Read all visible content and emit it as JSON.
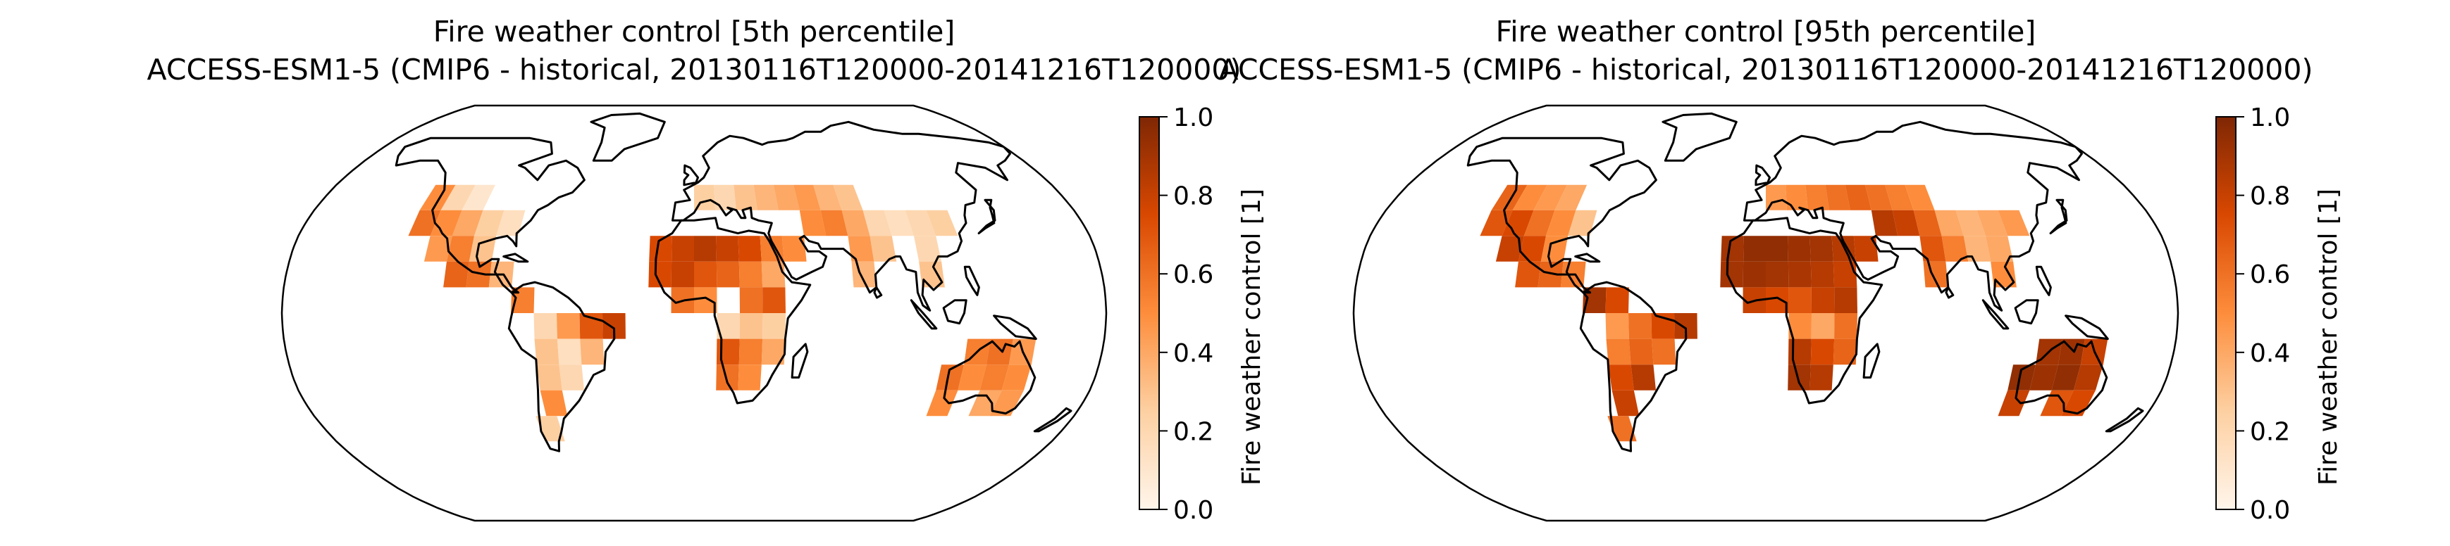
{
  "figure": {
    "panels": [
      {
        "title_line1": "Fire weather control [5th percentile]",
        "title_line2": "ACCESS-ESM1-5 (CMIP6 - historical, 20130116T120000-20141216T120000)",
        "colorbar_label": "Fire weather control [1]"
      },
      {
        "title_line1": "Fire weather control [95th percentile]",
        "title_line2": "ACCESS-ESM1-5 (CMIP6 - historical, 20130116T120000-20141216T120000)",
        "colorbar_label": "Fire weather control [1]"
      }
    ]
  },
  "chart_data": [
    {
      "type": "heatmap",
      "projection": "Robinson",
      "colormap": "Oranges",
      "colormap_stops": [
        "#fff5eb",
        "#fdd0a2",
        "#fd8d3c",
        "#d94801",
        "#7f2704"
      ],
      "vmin": 0.0,
      "vmax": 1.0,
      "colorbar_ticks": [
        "0.0",
        "0.2",
        "0.4",
        "0.6",
        "0.8",
        "1.0"
      ],
      "colorbar_tick_values": [
        0.0,
        0.2,
        0.4,
        0.6,
        0.8,
        1.0
      ],
      "grid_resolution_deg": 10,
      "cells": [
        {
          "lon": -125,
          "lat": 45,
          "v": 0.5
        },
        {
          "lon": -115,
          "lat": 45,
          "v": 0.2
        },
        {
          "lon": -105,
          "lat": 45,
          "v": 0.1
        },
        {
          "lon": -125,
          "lat": 35,
          "v": 0.6
        },
        {
          "lon": -115,
          "lat": 35,
          "v": 0.5
        },
        {
          "lon": -105,
          "lat": 35,
          "v": 0.4
        },
        {
          "lon": -95,
          "lat": 35,
          "v": 0.25
        },
        {
          "lon": -85,
          "lat": 35,
          "v": 0.15
        },
        {
          "lon": -115,
          "lat": 25,
          "v": 0.45
        },
        {
          "lon": -105,
          "lat": 25,
          "v": 0.55
        },
        {
          "lon": -95,
          "lat": 25,
          "v": 0.3
        },
        {
          "lon": -105,
          "lat": 15,
          "v": 0.65
        },
        {
          "lon": -95,
          "lat": 15,
          "v": 0.6
        },
        {
          "lon": -85,
          "lat": 15,
          "v": 0.35
        },
        {
          "lon": -75,
          "lat": 5,
          "v": 0.55
        },
        {
          "lon": -65,
          "lat": -5,
          "v": 0.2
        },
        {
          "lon": -55,
          "lat": -5,
          "v": 0.45
        },
        {
          "lon": -45,
          "lat": -5,
          "v": 0.7
        },
        {
          "lon": -35,
          "lat": -5,
          "v": 0.8
        },
        {
          "lon": -65,
          "lat": -15,
          "v": 0.3
        },
        {
          "lon": -55,
          "lat": -15,
          "v": 0.15
        },
        {
          "lon": -45,
          "lat": -15,
          "v": 0.35
        },
        {
          "lon": -65,
          "lat": -25,
          "v": 0.3
        },
        {
          "lon": -55,
          "lat": -25,
          "v": 0.2
        },
        {
          "lon": -65,
          "lat": -35,
          "v": 0.5
        },
        {
          "lon": -70,
          "lat": -45,
          "v": 0.25
        },
        {
          "lon": -15,
          "lat": 25,
          "v": 0.75
        },
        {
          "lon": -5,
          "lat": 25,
          "v": 0.8
        },
        {
          "lon": 5,
          "lat": 25,
          "v": 0.85
        },
        {
          "lon": 15,
          "lat": 25,
          "v": 0.8
        },
        {
          "lon": 25,
          "lat": 25,
          "v": 0.75
        },
        {
          "lon": 35,
          "lat": 25,
          "v": 0.55
        },
        {
          "lon": 45,
          "lat": 25,
          "v": 0.5
        },
        {
          "lon": -15,
          "lat": 15,
          "v": 0.75
        },
        {
          "lon": -5,
          "lat": 15,
          "v": 0.8
        },
        {
          "lon": 5,
          "lat": 15,
          "v": 0.7
        },
        {
          "lon": 15,
          "lat": 15,
          "v": 0.65
        },
        {
          "lon": 25,
          "lat": 15,
          "v": 0.55
        },
        {
          "lon": 35,
          "lat": 15,
          "v": 0.4
        },
        {
          "lon": -5,
          "lat": 5,
          "v": 0.6
        },
        {
          "lon": 5,
          "lat": 5,
          "v": 0.5
        },
        {
          "lon": 25,
          "lat": 5,
          "v": 0.6
        },
        {
          "lon": 35,
          "lat": 5,
          "v": 0.7
        },
        {
          "lon": 15,
          "lat": -5,
          "v": 0.2
        },
        {
          "lon": 25,
          "lat": -5,
          "v": 0.3
        },
        {
          "lon": 35,
          "lat": -5,
          "v": 0.25
        },
        {
          "lon": 15,
          "lat": -15,
          "v": 0.7
        },
        {
          "lon": 25,
          "lat": -15,
          "v": 0.55
        },
        {
          "lon": 35,
          "lat": -15,
          "v": 0.4
        },
        {
          "lon": 15,
          "lat": -25,
          "v": 0.6
        },
        {
          "lon": 25,
          "lat": -25,
          "v": 0.5
        },
        {
          "lon": 5,
          "lat": 45,
          "v": 0.25
        },
        {
          "lon": 15,
          "lat": 45,
          "v": 0.2
        },
        {
          "lon": 25,
          "lat": 45,
          "v": 0.3
        },
        {
          "lon": 35,
          "lat": 45,
          "v": 0.35
        },
        {
          "lon": 45,
          "lat": 45,
          "v": 0.4
        },
        {
          "lon": 55,
          "lat": 45,
          "v": 0.45
        },
        {
          "lon": 65,
          "lat": 45,
          "v": 0.35
        },
        {
          "lon": 75,
          "lat": 45,
          "v": 0.3
        },
        {
          "lon": 55,
          "lat": 35,
          "v": 0.5
        },
        {
          "lon": 65,
          "lat": 35,
          "v": 0.55
        },
        {
          "lon": 75,
          "lat": 35,
          "v": 0.4
        },
        {
          "lon": 85,
          "lat": 35,
          "v": 0.2
        },
        {
          "lon": 95,
          "lat": 35,
          "v": 0.15
        },
        {
          "lon": 105,
          "lat": 35,
          "v": 0.2
        },
        {
          "lon": 115,
          "lat": 35,
          "v": 0.25
        },
        {
          "lon": 75,
          "lat": 25,
          "v": 0.45
        },
        {
          "lon": 85,
          "lat": 25,
          "v": 0.3
        },
        {
          "lon": 105,
          "lat": 25,
          "v": 0.2
        },
        {
          "lon": 75,
          "lat": 15,
          "v": 0.35
        },
        {
          "lon": 105,
          "lat": 15,
          "v": 0.3
        },
        {
          "lon": 115,
          "lat": -25,
          "v": 0.6
        },
        {
          "lon": 125,
          "lat": -25,
          "v": 0.5
        },
        {
          "lon": 135,
          "lat": -25,
          "v": 0.55
        },
        {
          "lon": 145,
          "lat": -25,
          "v": 0.5
        },
        {
          "lon": 125,
          "lat": -15,
          "v": 0.55
        },
        {
          "lon": 135,
          "lat": -15,
          "v": 0.6
        },
        {
          "lon": 145,
          "lat": -15,
          "v": 0.45
        },
        {
          "lon": 115,
          "lat": -35,
          "v": 0.5
        },
        {
          "lon": 135,
          "lat": -35,
          "v": 0.4
        },
        {
          "lon": 145,
          "lat": -35,
          "v": 0.45
        }
      ]
    },
    {
      "type": "heatmap",
      "projection": "Robinson",
      "colormap": "Oranges",
      "colormap_stops": [
        "#fff5eb",
        "#fdd0a2",
        "#fd8d3c",
        "#d94801",
        "#7f2704"
      ],
      "vmin": 0.0,
      "vmax": 1.0,
      "colorbar_ticks": [
        "0.0",
        "0.2",
        "0.4",
        "0.6",
        "0.8",
        "1.0"
      ],
      "colorbar_tick_values": [
        0.0,
        0.2,
        0.4,
        0.6,
        0.8,
        1.0
      ],
      "grid_resolution_deg": 10,
      "cells": [
        {
          "lon": -125,
          "lat": 45,
          "v": 0.65
        },
        {
          "lon": -115,
          "lat": 45,
          "v": 0.5
        },
        {
          "lon": -105,
          "lat": 45,
          "v": 0.45
        },
        {
          "lon": -95,
          "lat": 45,
          "v": 0.4
        },
        {
          "lon": -125,
          "lat": 35,
          "v": 0.7
        },
        {
          "lon": -115,
          "lat": 35,
          "v": 0.75
        },
        {
          "lon": -105,
          "lat": 35,
          "v": 0.6
        },
        {
          "lon": -95,
          "lat": 35,
          "v": 0.5
        },
        {
          "lon": -85,
          "lat": 35,
          "v": 0.3
        },
        {
          "lon": -115,
          "lat": 25,
          "v": 0.8
        },
        {
          "lon": -105,
          "lat": 25,
          "v": 0.75
        },
        {
          "lon": -95,
          "lat": 25,
          "v": 0.5
        },
        {
          "lon": -105,
          "lat": 15,
          "v": 0.7
        },
        {
          "lon": -95,
          "lat": 15,
          "v": 0.65
        },
        {
          "lon": -85,
          "lat": 15,
          "v": 0.55
        },
        {
          "lon": -75,
          "lat": 5,
          "v": 0.9
        },
        {
          "lon": -65,
          "lat": 5,
          "v": 0.75
        },
        {
          "lon": -65,
          "lat": -5,
          "v": 0.45
        },
        {
          "lon": -55,
          "lat": -5,
          "v": 0.6
        },
        {
          "lon": -45,
          "lat": -5,
          "v": 0.75
        },
        {
          "lon": -35,
          "lat": -5,
          "v": 0.85
        },
        {
          "lon": -65,
          "lat": -15,
          "v": 0.55
        },
        {
          "lon": -55,
          "lat": -15,
          "v": 0.65
        },
        {
          "lon": -45,
          "lat": -15,
          "v": 0.6
        },
        {
          "lon": -65,
          "lat": -25,
          "v": 0.75
        },
        {
          "lon": -55,
          "lat": -25,
          "v": 0.85
        },
        {
          "lon": -65,
          "lat": -35,
          "v": 0.8
        },
        {
          "lon": -70,
          "lat": -45,
          "v": 0.6
        },
        {
          "lon": -15,
          "lat": 25,
          "v": 0.9
        },
        {
          "lon": -5,
          "lat": 25,
          "v": 0.95
        },
        {
          "lon": 5,
          "lat": 25,
          "v": 0.95
        },
        {
          "lon": 15,
          "lat": 25,
          "v": 0.92
        },
        {
          "lon": 25,
          "lat": 25,
          "v": 0.9
        },
        {
          "lon": 35,
          "lat": 25,
          "v": 0.85
        },
        {
          "lon": 45,
          "lat": 25,
          "v": 0.8
        },
        {
          "lon": -15,
          "lat": 15,
          "v": 0.9
        },
        {
          "lon": -5,
          "lat": 15,
          "v": 0.92
        },
        {
          "lon": 5,
          "lat": 15,
          "v": 0.9
        },
        {
          "lon": 15,
          "lat": 15,
          "v": 0.88
        },
        {
          "lon": 25,
          "lat": 15,
          "v": 0.85
        },
        {
          "lon": 35,
          "lat": 15,
          "v": 0.8
        },
        {
          "lon": -5,
          "lat": 5,
          "v": 0.8
        },
        {
          "lon": 5,
          "lat": 5,
          "v": 0.75
        },
        {
          "lon": 15,
          "lat": 5,
          "v": 0.7
        },
        {
          "lon": 25,
          "lat": 5,
          "v": 0.8
        },
        {
          "lon": 35,
          "lat": 5,
          "v": 0.85
        },
        {
          "lon": 15,
          "lat": -5,
          "v": 0.5
        },
        {
          "lon": 25,
          "lat": -5,
          "v": 0.4
        },
        {
          "lon": 35,
          "lat": -5,
          "v": 0.6
        },
        {
          "lon": 15,
          "lat": -15,
          "v": 0.85
        },
        {
          "lon": 25,
          "lat": -15,
          "v": 0.75
        },
        {
          "lon": 35,
          "lat": -15,
          "v": 0.65
        },
        {
          "lon": 15,
          "lat": -25,
          "v": 0.9
        },
        {
          "lon": 25,
          "lat": -25,
          "v": 0.85
        },
        {
          "lon": 5,
          "lat": 45,
          "v": 0.45
        },
        {
          "lon": 15,
          "lat": 45,
          "v": 0.5
        },
        {
          "lon": 25,
          "lat": 45,
          "v": 0.55
        },
        {
          "lon": 35,
          "lat": 45,
          "v": 0.6
        },
        {
          "lon": 45,
          "lat": 45,
          "v": 0.65
        },
        {
          "lon": 55,
          "lat": 45,
          "v": 0.6
        },
        {
          "lon": 65,
          "lat": 45,
          "v": 0.55
        },
        {
          "lon": 75,
          "lat": 45,
          "v": 0.5
        },
        {
          "lon": 55,
          "lat": 35,
          "v": 0.85
        },
        {
          "lon": 65,
          "lat": 35,
          "v": 0.8
        },
        {
          "lon": 75,
          "lat": 35,
          "v": 0.65
        },
        {
          "lon": 85,
          "lat": 35,
          "v": 0.4
        },
        {
          "lon": 95,
          "lat": 35,
          "v": 0.35
        },
        {
          "lon": 105,
          "lat": 35,
          "v": 0.4
        },
        {
          "lon": 115,
          "lat": 35,
          "v": 0.45
        },
        {
          "lon": 75,
          "lat": 25,
          "v": 0.7
        },
        {
          "lon": 85,
          "lat": 25,
          "v": 0.55
        },
        {
          "lon": 95,
          "lat": 25,
          "v": 0.35
        },
        {
          "lon": 105,
          "lat": 25,
          "v": 0.4
        },
        {
          "lon": 75,
          "lat": 15,
          "v": 0.6
        },
        {
          "lon": 105,
          "lat": 15,
          "v": 0.5
        },
        {
          "lon": 115,
          "lat": -25,
          "v": 0.95
        },
        {
          "lon": 125,
          "lat": -25,
          "v": 0.92
        },
        {
          "lon": 135,
          "lat": -25,
          "v": 0.95
        },
        {
          "lon": 145,
          "lat": -25,
          "v": 0.85
        },
        {
          "lon": 125,
          "lat": -15,
          "v": 0.9
        },
        {
          "lon": 135,
          "lat": -15,
          "v": 0.92
        },
        {
          "lon": 145,
          "lat": -15,
          "v": 0.8
        },
        {
          "lon": 115,
          "lat": -35,
          "v": 0.8
        },
        {
          "lon": 135,
          "lat": -35,
          "v": 0.7
        },
        {
          "lon": 145,
          "lat": -35,
          "v": 0.75
        }
      ]
    }
  ]
}
